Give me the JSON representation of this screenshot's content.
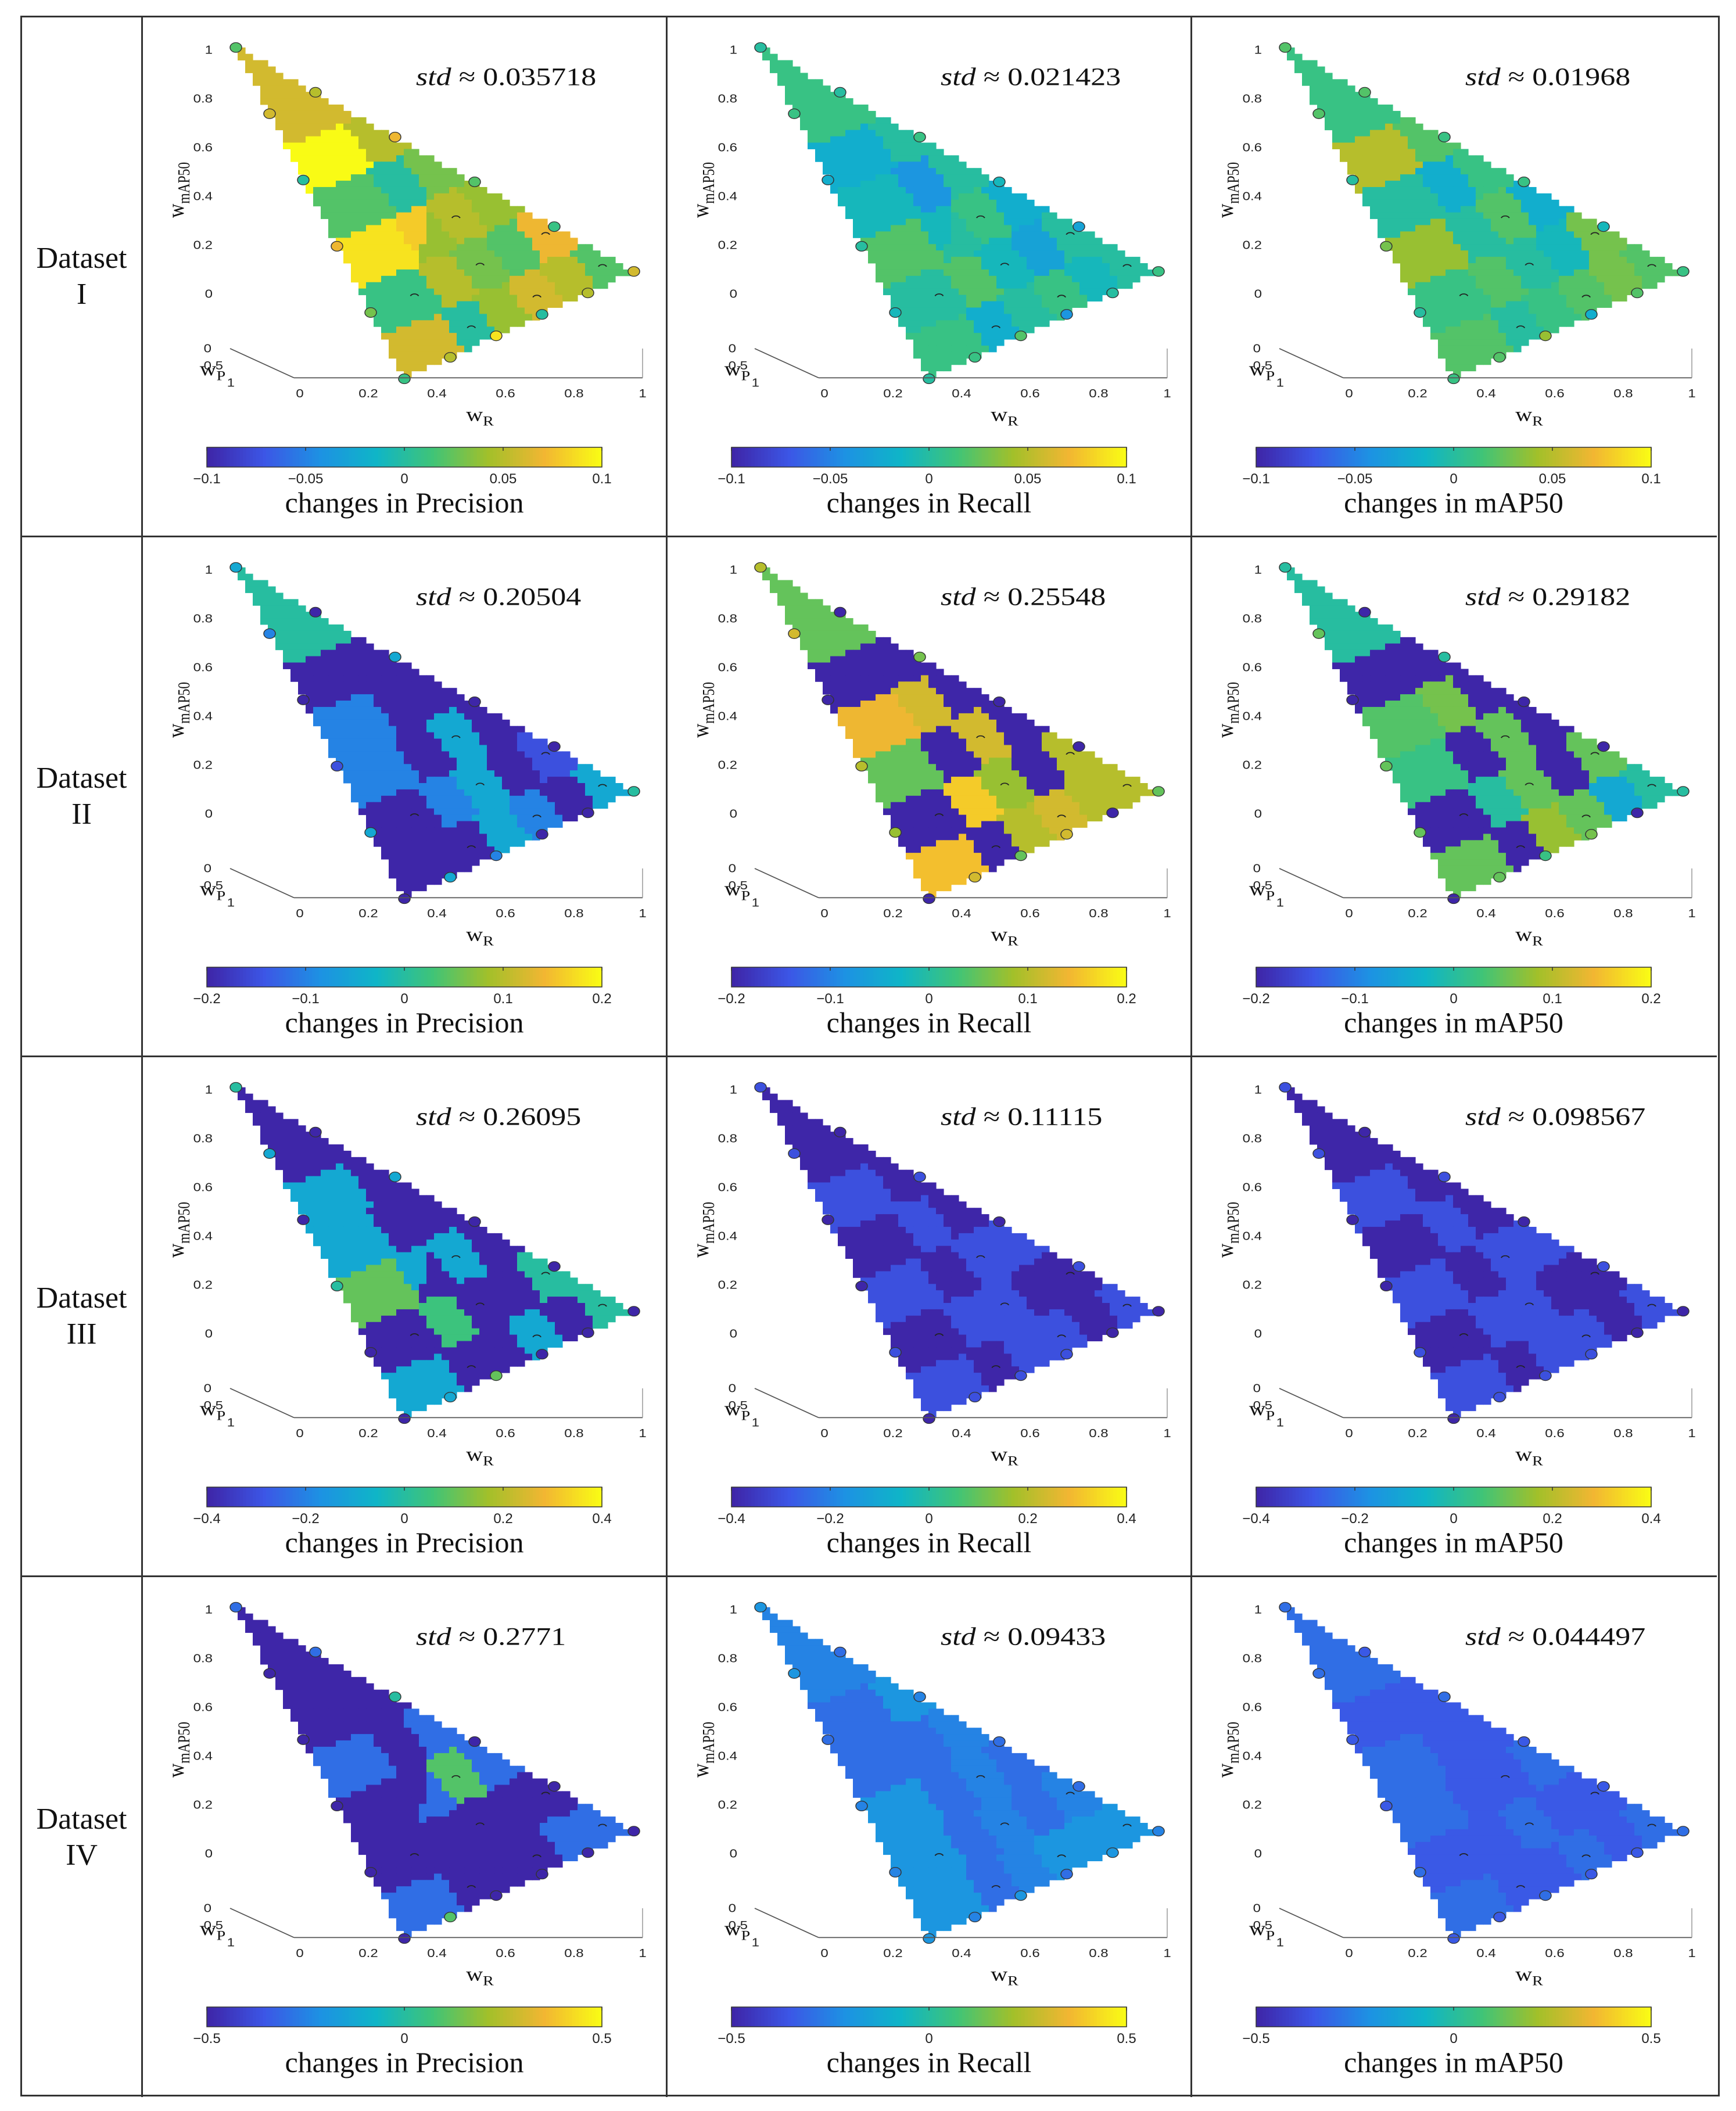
{
  "colorscale": [
    "#3e26a8",
    "#3c56e6",
    "#1d92e3",
    "#0fb5c7",
    "#3fc478",
    "#a2c02a",
    "#f2b632",
    "#f9fb15"
  ],
  "chart_data": [
    {
      "dataset": [
        "Dataset",
        "I"
      ],
      "ylim_labels": [
        "0.8",
        "0.6",
        "0.4",
        "0.2",
        "0"
      ],
      "panels": [
        {
          "type": "heatmap",
          "metric": "Precision",
          "std_value": "0.035718",
          "title": "std ≈ 0.035718",
          "colorbar_label": "changes in Precision",
          "colorbar_ticks": [
            "-0.1",
            "-0.05",
            "0",
            "0.05",
            "0.1"
          ],
          "clim": [
            -0.1,
            0.1
          ],
          "cells": [
            0.02,
            0.05,
            0.06,
            0.04,
            0.0,
            0.06,
            0.07,
            0.02,
            0.03,
            0.05,
            0.01,
            0.04,
            0.05,
            0.08,
            0.09,
            0.03,
            0.0,
            0.02,
            0.05,
            0.1,
            0.06,
            0.04,
            0.01,
            0.0,
            0.02,
            0.03,
            0.07,
            0.08,
            0.05,
            0.02
          ]
        },
        {
          "type": "heatmap",
          "metric": "Recall",
          "std_value": "0.021423",
          "title": "std ≈ 0.021423",
          "colorbar_label": "changes in Recall",
          "colorbar_ticks": [
            "-0.1",
            "-0.05",
            "0",
            "0.05",
            "0.1"
          ],
          "clim": [
            -0.1,
            0.1
          ],
          "cells": [
            0.0,
            -0.01,
            0.01,
            0.0,
            -0.02,
            0.01,
            0.0,
            -0.03,
            -0.01,
            0.02,
            0.0,
            -0.02,
            0.01,
            -0.01,
            0.02,
            0.0,
            -0.04,
            -0.01,
            0.0,
            -0.02,
            0.01,
            0.0,
            -0.03,
            -0.02,
            -0.01,
            0.0,
            0.01,
            -0.02,
            0.0,
            0.0
          ]
        },
        {
          "type": "heatmap",
          "metric": "mAP50",
          "std_value": "0.01968",
          "title": "std ≈ 0.01968",
          "colorbar_label": "changes in mAP50",
          "colorbar_ticks": [
            "-0.1",
            "-0.05",
            "0",
            "0.05",
            "0.1"
          ],
          "clim": [
            -0.1,
            0.1
          ],
          "cells": [
            0.02,
            0.03,
            0.02,
            0.01,
            0.0,
            0.02,
            0.03,
            -0.01,
            0.0,
            0.02,
            0.01,
            -0.02,
            0.02,
            0.0,
            0.04,
            0.01,
            -0.02,
            0.0,
            0.02,
            0.05,
            0.01,
            0.0,
            -0.01,
            0.0,
            0.01,
            0.02,
            0.01,
            0.0,
            0.02,
            0.0
          ]
        }
      ]
    },
    {
      "dataset": [
        "Dataset",
        "II"
      ],
      "ylim_labels": [
        "0.8",
        "0.6",
        "0.4",
        "0.2",
        "0"
      ],
      "panels": [
        {
          "type": "heatmap",
          "metric": "Precision",
          "std_value": "0.20504",
          "title": "std ≈ 0.20504",
          "colorbar_label": "changes in Precision",
          "colorbar_ticks": [
            "-0.2",
            "-0.1",
            "0",
            "0.1",
            "0.2"
          ],
          "clim": [
            -0.2,
            0.2
          ],
          "cells": [
            -0.05,
            -0.2,
            -0.1,
            -0.05,
            -0.2,
            -0.2,
            -0.15,
            -0.2,
            -0.05,
            -0.1,
            -0.2,
            -0.2,
            -0.05,
            -0.2,
            -0.1,
            -0.2,
            -0.2,
            -0.1,
            -0.2,
            -0.2,
            0.0,
            -0.2,
            -0.2,
            -0.1,
            -0.2,
            -0.2,
            -0.05,
            0.0,
            -0.2,
            -0.2
          ]
        },
        {
          "type": "heatmap",
          "metric": "Recall",
          "std_value": "0.25548",
          "title": "std ≈ 0.25548",
          "colorbar_label": "changes in Recall",
          "colorbar_ticks": [
            "-0.2",
            "-0.1",
            "0",
            "0.1",
            "0.2"
          ],
          "clim": [
            -0.2,
            0.2
          ],
          "cells": [
            0.1,
            0.1,
            0.12,
            0.1,
            -0.2,
            0.15,
            0.1,
            -0.2,
            0.08,
            0.16,
            -0.2,
            -0.2,
            0.12,
            -0.2,
            0.05,
            -0.2,
            0.12,
            0.14,
            -0.2,
            -0.2,
            0.05,
            -0.2,
            -0.2,
            0.08,
            -0.2,
            -0.2,
            0.06,
            -0.2,
            -0.2,
            -0.2
          ]
        },
        {
          "type": "heatmap",
          "metric": "mAP50",
          "std_value": "0.29182",
          "title": "std ≈ 0.29182",
          "colorbar_label": "changes in mAP50",
          "colorbar_ticks": [
            "-0.2",
            "-0.1",
            "0",
            "0.1",
            "0.2"
          ],
          "clim": [
            -0.2,
            0.2
          ],
          "cells": [
            0.0,
            -0.05,
            0.05,
            0.08,
            -0.2,
            0.05,
            0.05,
            -0.2,
            0.05,
            0.0,
            -0.2,
            -0.2,
            0.05,
            -0.2,
            0.02,
            -0.2,
            0.06,
            0.04,
            -0.2,
            -0.2,
            0.0,
            -0.2,
            -0.2,
            0.05,
            -0.2,
            -0.2,
            0.0,
            -0.2,
            -0.2,
            -0.2
          ]
        }
      ]
    },
    {
      "dataset": [
        "Dataset",
        "III"
      ],
      "ylim_labels": [
        "0.8",
        "0.6",
        "0.4",
        "0.2",
        "0"
      ],
      "panels": [
        {
          "type": "heatmap",
          "metric": "Precision",
          "std_value": "0.26095",
          "title": "std ≈ 0.26095",
          "colorbar_label": "changes in Precision",
          "colorbar_ticks": [
            "-0.4",
            "-0.2",
            "0",
            "0.2",
            "0.4"
          ],
          "clim": [
            -0.4,
            0.4
          ],
          "cells": [
            0.0,
            -0.4,
            -0.1,
            -0.4,
            -0.4,
            -0.1,
            0.0,
            -0.4,
            -0.4,
            0.05,
            -0.4,
            -0.4,
            -0.1,
            -0.1,
            0.1,
            -0.4,
            -0.4,
            -0.1,
            -0.4,
            -0.1,
            -0.4,
            -0.4,
            -0.4,
            -0.1,
            -0.4,
            0.2,
            -0.1,
            -0.4,
            -0.4,
            -0.4
          ]
        },
        {
          "type": "heatmap",
          "metric": "Recall",
          "std_value": "0.11115",
          "title": "std ≈ 0.11115",
          "colorbar_label": "changes in Recall",
          "colorbar_ticks": [
            "-0.4",
            "-0.2",
            "0",
            "0.2",
            "0.4"
          ],
          "clim": [
            -0.4,
            0.4
          ],
          "cells": [
            -0.3,
            -0.4,
            -0.3,
            -0.3,
            -0.4,
            -0.3,
            -0.4,
            -0.4,
            -0.3,
            -0.3,
            -0.4,
            -0.3,
            -0.3,
            -0.4,
            -0.3,
            -0.4,
            -0.3,
            -0.4,
            -0.4,
            -0.3,
            -0.4,
            -0.4,
            -0.3,
            -0.3,
            -0.4,
            -0.3,
            -0.3,
            -0.4,
            -0.4,
            -0.3
          ]
        },
        {
          "type": "heatmap",
          "metric": "mAP50",
          "std_value": "0.098567",
          "title": "std ≈ 0.098567",
          "colorbar_label": "changes in mAP50",
          "colorbar_ticks": [
            "-0.4",
            "-0.2",
            "0",
            "0.2",
            "0.4"
          ],
          "clim": [
            -0.4,
            0.4
          ],
          "cells": [
            -0.3,
            -0.4,
            -0.3,
            -0.3,
            -0.4,
            -0.3,
            -0.4,
            -0.4,
            -0.3,
            -0.3,
            -0.4,
            -0.3,
            -0.3,
            -0.4,
            -0.3,
            -0.4,
            -0.3,
            -0.4,
            -0.4,
            -0.3,
            -0.4,
            -0.4,
            -0.3,
            -0.3,
            -0.4,
            -0.3,
            -0.3,
            -0.4,
            -0.4,
            -0.4
          ]
        }
      ]
    },
    {
      "dataset": [
        "Dataset",
        "IV"
      ],
      "ylim_labels": [
        "0.8",
        "0.6",
        "0.4",
        "0.2",
        "0"
      ],
      "panels": [
        {
          "type": "heatmap",
          "metric": "Precision",
          "std_value": "0.2771",
          "title": "std ≈ 0.2771",
          "colorbar_label": "changes in Precision",
          "colorbar_ticks": [
            "-0.5",
            "0",
            "0.5"
          ],
          "clim": [
            -0.5,
            0.5
          ],
          "cells": [
            -0.3,
            -0.3,
            -0.5,
            -0.5,
            -0.5,
            -0.3,
            -0.5,
            -0.5,
            -0.5,
            -0.5,
            -0.5,
            -0.3,
            0.1,
            -0.5,
            -0.5,
            -0.3,
            -0.5,
            -0.3,
            -0.5,
            -0.5,
            -0.5,
            -0.3,
            -0.5,
            -0.3,
            -0.5,
            -0.5,
            0.0,
            -0.5,
            -0.3,
            -0.5
          ]
        },
        {
          "type": "heatmap",
          "metric": "Recall",
          "std_value": "0.09433",
          "title": "std ≈ 0.09433",
          "colorbar_label": "changes in Recall",
          "colorbar_ticks": [
            "-0.5",
            "0",
            "0.5"
          ],
          "clim": [
            -0.5,
            0.5
          ],
          "cells": [
            -0.2,
            -0.2,
            -0.2,
            -0.25,
            -0.3,
            -0.2,
            -0.25,
            -0.3,
            -0.25,
            -0.3,
            -0.2,
            -0.3,
            -0.25,
            -0.3,
            -0.2,
            -0.25,
            -0.3,
            -0.3,
            -0.2,
            -0.3,
            -0.25,
            -0.3,
            -0.3,
            -0.2,
            -0.3,
            -0.3,
            -0.25,
            -0.3,
            -0.3,
            -0.1
          ]
        },
        {
          "type": "heatmap",
          "metric": "mAP50",
          "std_value": "0.044497",
          "title": "std ≈ 0.044497",
          "colorbar_label": "changes in mAP50",
          "colorbar_ticks": [
            "-0.5",
            "0",
            "0.5"
          ],
          "clim": [
            -0.5,
            0.5
          ],
          "cells": [
            -0.3,
            -0.35,
            -0.3,
            -0.35,
            -0.35,
            -0.3,
            -0.35,
            -0.35,
            -0.3,
            -0.35,
            -0.35,
            -0.3,
            -0.35,
            -0.35,
            -0.3,
            -0.35,
            -0.35,
            -0.3,
            -0.35,
            -0.35,
            -0.3,
            -0.35,
            -0.35,
            -0.3,
            -0.35,
            -0.35,
            -0.3,
            -0.35,
            -0.35,
            -0.35
          ]
        }
      ]
    }
  ],
  "axis_labels": {
    "y_main": "w",
    "y_sub": "mAP50",
    "x_main": "w",
    "x_sub": "R",
    "z_main": "w",
    "z_sub": "P",
    "x_ticks": [
      "0",
      "0.2",
      "0.4",
      "0.6",
      "0.8",
      "1"
    ],
    "y_ticks": [
      "1",
      "0.8",
      "0.6",
      "0.4",
      "0.2",
      "0"
    ],
    "z_ticks": [
      "0",
      "0.5",
      "1"
    ]
  }
}
